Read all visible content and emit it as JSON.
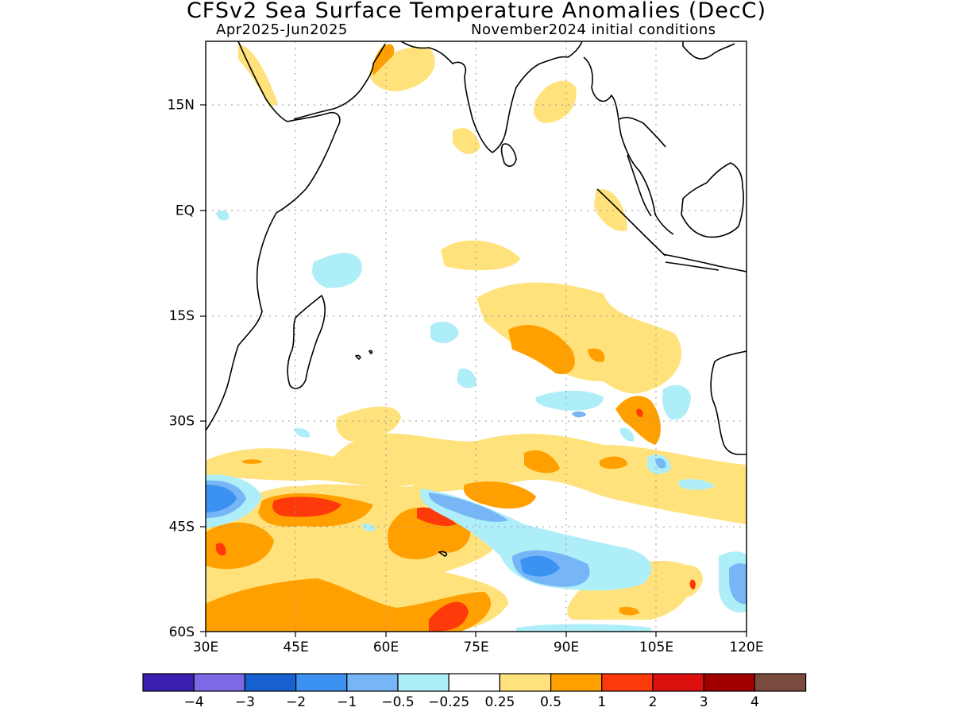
{
  "header": {
    "title": "CFSv2 Sea Surface Temperature Anomalies (DecC)",
    "period": "Apr2025-Jun2025",
    "init": "November2024 initial conditions"
  },
  "map": {
    "lon_range": [
      30,
      120
    ],
    "lat_range": [
      -60,
      24
    ],
    "lon_ticks": [
      {
        "value": 30,
        "label": "30E"
      },
      {
        "value": 45,
        "label": "45E"
      },
      {
        "value": 60,
        "label": "60E"
      },
      {
        "value": 75,
        "label": "75E"
      },
      {
        "value": 90,
        "label": "90E"
      },
      {
        "value": 105,
        "label": "105E"
      },
      {
        "value": 120,
        "label": "120E"
      }
    ],
    "lat_ticks": [
      {
        "value": 15,
        "label": "15N"
      },
      {
        "value": 0,
        "label": "EQ"
      },
      {
        "value": -15,
        "label": "15S"
      },
      {
        "value": -30,
        "label": "30S"
      },
      {
        "value": -45,
        "label": "45S"
      },
      {
        "value": -60,
        "label": "60S"
      }
    ],
    "gridlines": "dotted"
  },
  "colorbar": {
    "colors": [
      "#3a1fb0",
      "#7d68e6",
      "#1660d0",
      "#3c92f0",
      "#76b6f6",
      "#aeeef8",
      "#ffffff",
      "#ffe27c",
      "#ffa000",
      "#ff3a0a",
      "#dd1010",
      "#a00000",
      "#7a4a3e"
    ],
    "labels": [
      "−4",
      "−3",
      "−2",
      "−1",
      "−0.5",
      "−0.25",
      "0.25",
      "0.5",
      "1",
      "2",
      "3",
      "4"
    ]
  },
  "anomaly_regions": [
    {
      "level": "0.5",
      "lon": [
        36,
        48
      ],
      "lat": [
        -33,
        -39
      ]
    },
    {
      "level": "1",
      "lon": [
        39,
        57
      ],
      "lat": [
        -40,
        -46
      ]
    },
    {
      "level": "1",
      "lon": [
        30,
        75
      ],
      "lat": [
        -50,
        -60
      ]
    },
    {
      "level": "2",
      "lon": [
        65,
        72
      ],
      "lat": [
        -55,
        -60
      ]
    },
    {
      "level": "1",
      "lon": [
        62,
        73
      ],
      "lat": [
        -42,
        -50
      ]
    },
    {
      "level": "2",
      "lon": [
        66,
        71
      ],
      "lat": [
        -43,
        -45
      ]
    },
    {
      "level": "-1",
      "lon": [
        30,
        37
      ],
      "lat": [
        -39,
        -45
      ]
    },
    {
      "level": "-1",
      "lon": [
        84,
        91
      ],
      "lat": [
        -48,
        -52
      ]
    },
    {
      "level": "-1",
      "lon": [
        116,
        120
      ],
      "lat": [
        -49,
        -56
      ]
    },
    {
      "level": "-0.25",
      "lon": [
        64,
        88
      ],
      "lat": [
        -39,
        -47
      ]
    },
    {
      "level": "-0.25",
      "lon": [
        79,
        100
      ],
      "lat": [
        -46,
        -54
      ]
    },
    {
      "level": "0.5",
      "lon": [
        80,
        120
      ],
      "lat": [
        -31,
        -46
      ]
    },
    {
      "level": "0.5",
      "lon": [
        73,
        92
      ],
      "lat": [
        -11,
        -23
      ]
    },
    {
      "level": "1",
      "lon": [
        84,
        93
      ],
      "lat": [
        -17,
        -23
      ]
    },
    {
      "level": "1",
      "lon": [
        97,
        103
      ],
      "lat": [
        -26,
        -33
      ]
    },
    {
      "level": "2",
      "lon": [
        99.5,
        100.5
      ],
      "lat": [
        -28,
        -29
      ]
    },
    {
      "level": "-0.25",
      "lon": [
        101,
        105
      ],
      "lat": [
        -24,
        -30
      ]
    },
    {
      "level": "-0.25",
      "lon": [
        48,
        56
      ],
      "lat": [
        -5,
        -11
      ]
    },
    {
      "level": "0.5",
      "lon": [
        70,
        82
      ],
      "lat": [
        -4,
        -8
      ]
    },
    {
      "level": "0.5",
      "lon": [
        83,
        91
      ],
      "lat": [
        11,
        19
      ]
    }
  ]
}
